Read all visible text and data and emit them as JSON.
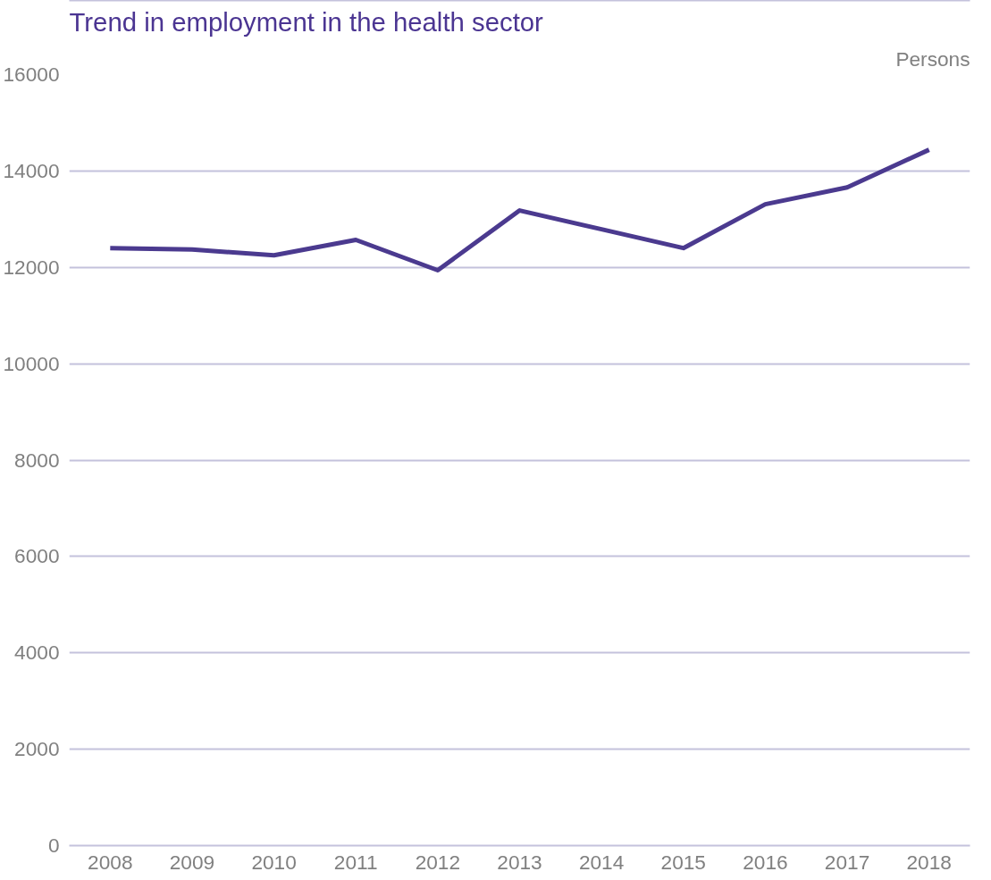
{
  "chart_data": {
    "type": "line",
    "title": "Trend in employment in the health sector",
    "ylabel": "Persons",
    "categories": [
      "2008",
      "2009",
      "2010",
      "2011",
      "2012",
      "2013",
      "2014",
      "2015",
      "2016",
      "2017",
      "2018"
    ],
    "series": [
      {
        "color": "#4b3a8f",
        "values": [
          12400,
          12370,
          12250,
          12570,
          11940,
          13180,
          12790,
          12400,
          13310,
          13660,
          14440
        ]
      }
    ],
    "ylim": [
      0,
      16000
    ],
    "yticks": [
      0,
      2000,
      4000,
      6000,
      8000,
      10000,
      12000,
      14000,
      16000
    ],
    "grid": "y",
    "marker": "none",
    "line_style": "solid"
  }
}
